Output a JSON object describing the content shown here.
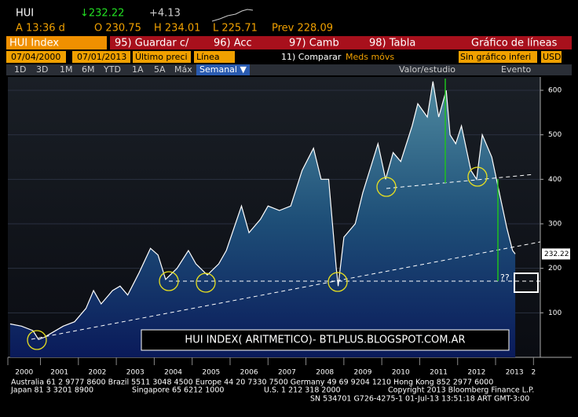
{
  "header": {
    "ticker": "HUI",
    "last": "↓232.22",
    "change": "+4.13",
    "time": "A 13:36 d",
    "open": "O 230.75",
    "high": "H 234.01",
    "low": "L 225.71",
    "prev": "Prev 228.09"
  },
  "menu": {
    "security": "HUI Index",
    "save": "95) Guardar c/",
    "actions": "96) Acc",
    "change": "97) Camb",
    "table": "98) Tabla",
    "chart_kind": "Gráfico de líneas"
  },
  "settings": {
    "start": "07/04/2000",
    "end": "07/01/2013",
    "field": "Último preci",
    "style": "Línea",
    "compare": "11) Comparar",
    "moving": "Meds móvs",
    "lower": "Sin gráfico inferi",
    "currency": "USD"
  },
  "periods": {
    "items": [
      "1D",
      "3D",
      "1M",
      "6M",
      "YTD",
      "1A",
      "5A",
      "Máx"
    ],
    "frequency": "Semanal ▼",
    "study": "Valor/estudio",
    "event": "Evento"
  },
  "chart_data": {
    "type": "line",
    "annotation": "HUI INDEX( ARITMETICO)- BTLPLUS.BLOGSPOT.COM.AR",
    "marker_text": "??",
    "last_label": "232.22",
    "series": [
      {
        "name": "HUI Index",
        "color": "#ffffff",
        "x": [
          2000.2,
          2000.5,
          2000.8,
          2000.95,
          2001.1,
          2001.3,
          2001.6,
          2001.9,
          2002.2,
          2002.4,
          2002.6,
          2002.9,
          2003.1,
          2003.3,
          2003.6,
          2003.9,
          2004.1,
          2004.3,
          2004.6,
          2004.9,
          2005.1,
          2005.4,
          2005.7,
          2005.9,
          2006.3,
          2006.5,
          2006.8,
          2007.0,
          2007.3,
          2007.6,
          2007.9,
          2008.2,
          2008.4,
          2008.6,
          2008.8,
          2008.85,
          2009.0,
          2009.3,
          2009.5,
          2009.9,
          2010.1,
          2010.3,
          2010.5,
          2010.8,
          2010.95,
          2011.2,
          2011.35,
          2011.5,
          2011.7,
          2011.8,
          2011.95,
          2012.1,
          2012.35,
          2012.5,
          2012.65,
          2012.9,
          2013.1,
          2013.3,
          2013.45,
          2013.52
        ],
        "values": [
          75,
          70,
          60,
          40,
          45,
          55,
          70,
          80,
          110,
          150,
          120,
          150,
          160,
          140,
          190,
          245,
          230,
          175,
          200,
          240,
          210,
          185,
          210,
          240,
          340,
          280,
          310,
          340,
          330,
          340,
          420,
          470,
          400,
          400,
          200,
          160,
          270,
          300,
          370,
          480,
          400,
          460,
          440,
          520,
          570,
          540,
          620,
          540,
          600,
          500,
          480,
          520,
          420,
          400,
          500,
          450,
          370,
          290,
          240,
          232.22
        ]
      }
    ],
    "xlim": [
      2000.14,
      2014.18
    ],
    "xticks": [
      2000,
      2001,
      2002,
      2003,
      2004,
      2005,
      2006,
      2007,
      2008,
      2009,
      2010,
      2011,
      2012,
      2013,
      {
        "value": 2014,
        "label": "2"
      }
    ],
    "ylim": [
      0,
      630
    ],
    "yticks": [
      100,
      200,
      300,
      400,
      500,
      600
    ]
  },
  "footer": {
    "line1": "Australia 61 2 9777 8600 Brazil 5511 3048 4500 Europe 44 20 7330 7500 Germany 49 69 9204 1210 Hong Kong 852 2977 6000",
    "line2a": "Japan 81 3 3201 8900",
    "line2b": "Singapore 65 6212 1000",
    "line2c": "U.S. 1 212 318 2000",
    "line2d": "Copyright 2013 Bloomberg Finance L.P.",
    "line3": "SN 534701 G726-4275-1 01-Jul-13 13:51:18 ART  GMT-3:00"
  }
}
